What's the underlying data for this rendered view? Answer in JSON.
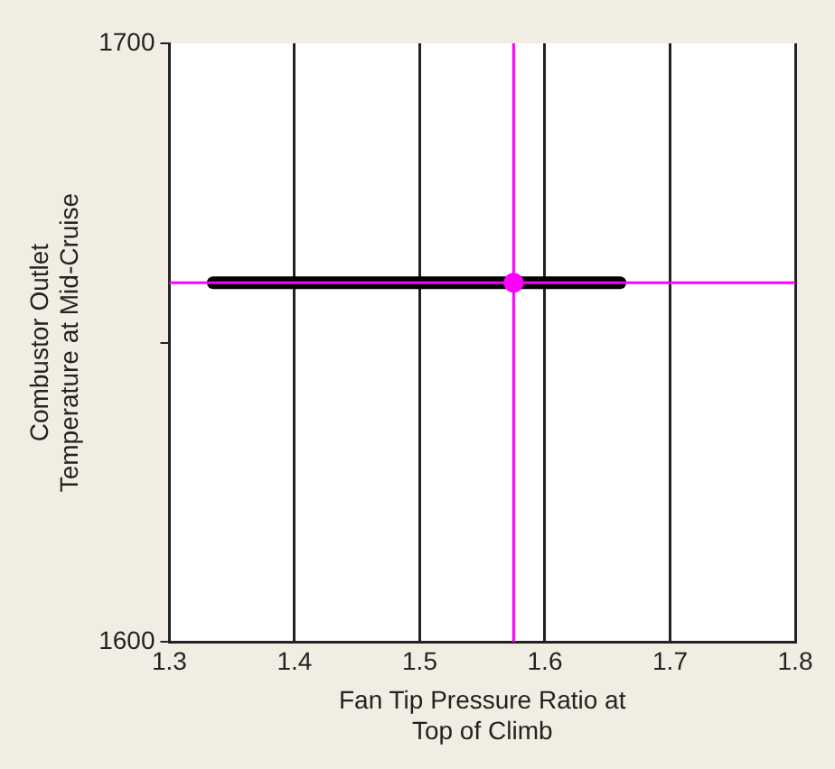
{
  "chart_data": {
    "type": "line",
    "xlabel": "Fan Tip Pressure Ratio at\nTop of Climb",
    "ylabel": "Combustor Outlet\nTemperature at Mid-Cruise",
    "series": [
      {
        "x": [
          1.335,
          1.66
        ],
        "values": [
          1660,
          1660
        ],
        "color": "#000000",
        "marker": "none"
      },
      {
        "type": "scatter",
        "x": [
          1.575
        ],
        "values": [
          1660
        ],
        "color": "#ff00ff",
        "marker": "circle"
      }
    ],
    "xlim": [
      1.3,
      1.8
    ],
    "xticks": [
      1.3,
      1.4,
      1.5,
      1.6,
      1.7,
      1.8
    ],
    "ylim": [
      1600,
      1700
    ],
    "yticks": [
      1600,
      {
        "value": 1650,
        "label": null
      },
      1700
    ],
    "grid": "x",
    "legend": false,
    "ref_lines": [
      {
        "axis": "x",
        "value": 1.575,
        "color": "#ff00ff"
      },
      {
        "axis": "y",
        "value": 1660,
        "color": "#ff00ff"
      }
    ]
  }
}
